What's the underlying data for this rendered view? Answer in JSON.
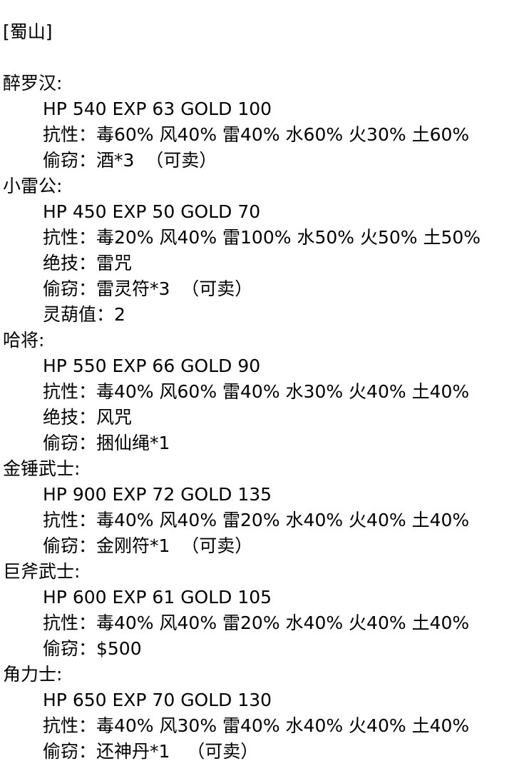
{
  "section_title": "[蜀山]",
  "monsters": [
    {
      "name": "醉罗汉:",
      "details": [
        "HP 540 EXP 63 GOLD 100",
        "抗性：毒60% 风40% 雷40% 水60% 火30% 土60%",
        "偷窃：酒*3  （可卖）"
      ]
    },
    {
      "name": "小雷公:",
      "details": [
        "HP 450 EXP 50 GOLD 70",
        "抗性：毒20% 风40% 雷100% 水50% 火50% 土50%",
        "绝技：雷咒",
        "偷窃：雷灵符*3  （可卖）",
        "灵葫值：2"
      ]
    },
    {
      "name": "哈将:",
      "details": [
        "HP 550 EXP 66 GOLD 90",
        "抗性：毒40% 风60% 雷40% 水30% 火40% 土40%",
        "绝技：风咒",
        "偷窃：捆仙绳*1"
      ]
    },
    {
      "name": "金锤武士:",
      "details": [
        "HP 900 EXP 72 GOLD 135",
        "抗性：毒40% 风40% 雷20% 水40% 火40% 土40%",
        "偷窃：金刚符*1  （可卖）"
      ]
    },
    {
      "name": "巨斧武士:",
      "details": [
        "HP 600 EXP 61 GOLD 105",
        "抗性：毒40% 风40% 雷20% 水40% 火40% 土40%",
        "偷窃：$500"
      ]
    },
    {
      "name": "角力士:",
      "details": [
        "HP 650 EXP 70 GOLD 130",
        "抗性：毒40% 风30% 雷40% 水40% 火40% 土40%",
        "偷窃：还神丹*1   （可卖）"
      ]
    }
  ]
}
